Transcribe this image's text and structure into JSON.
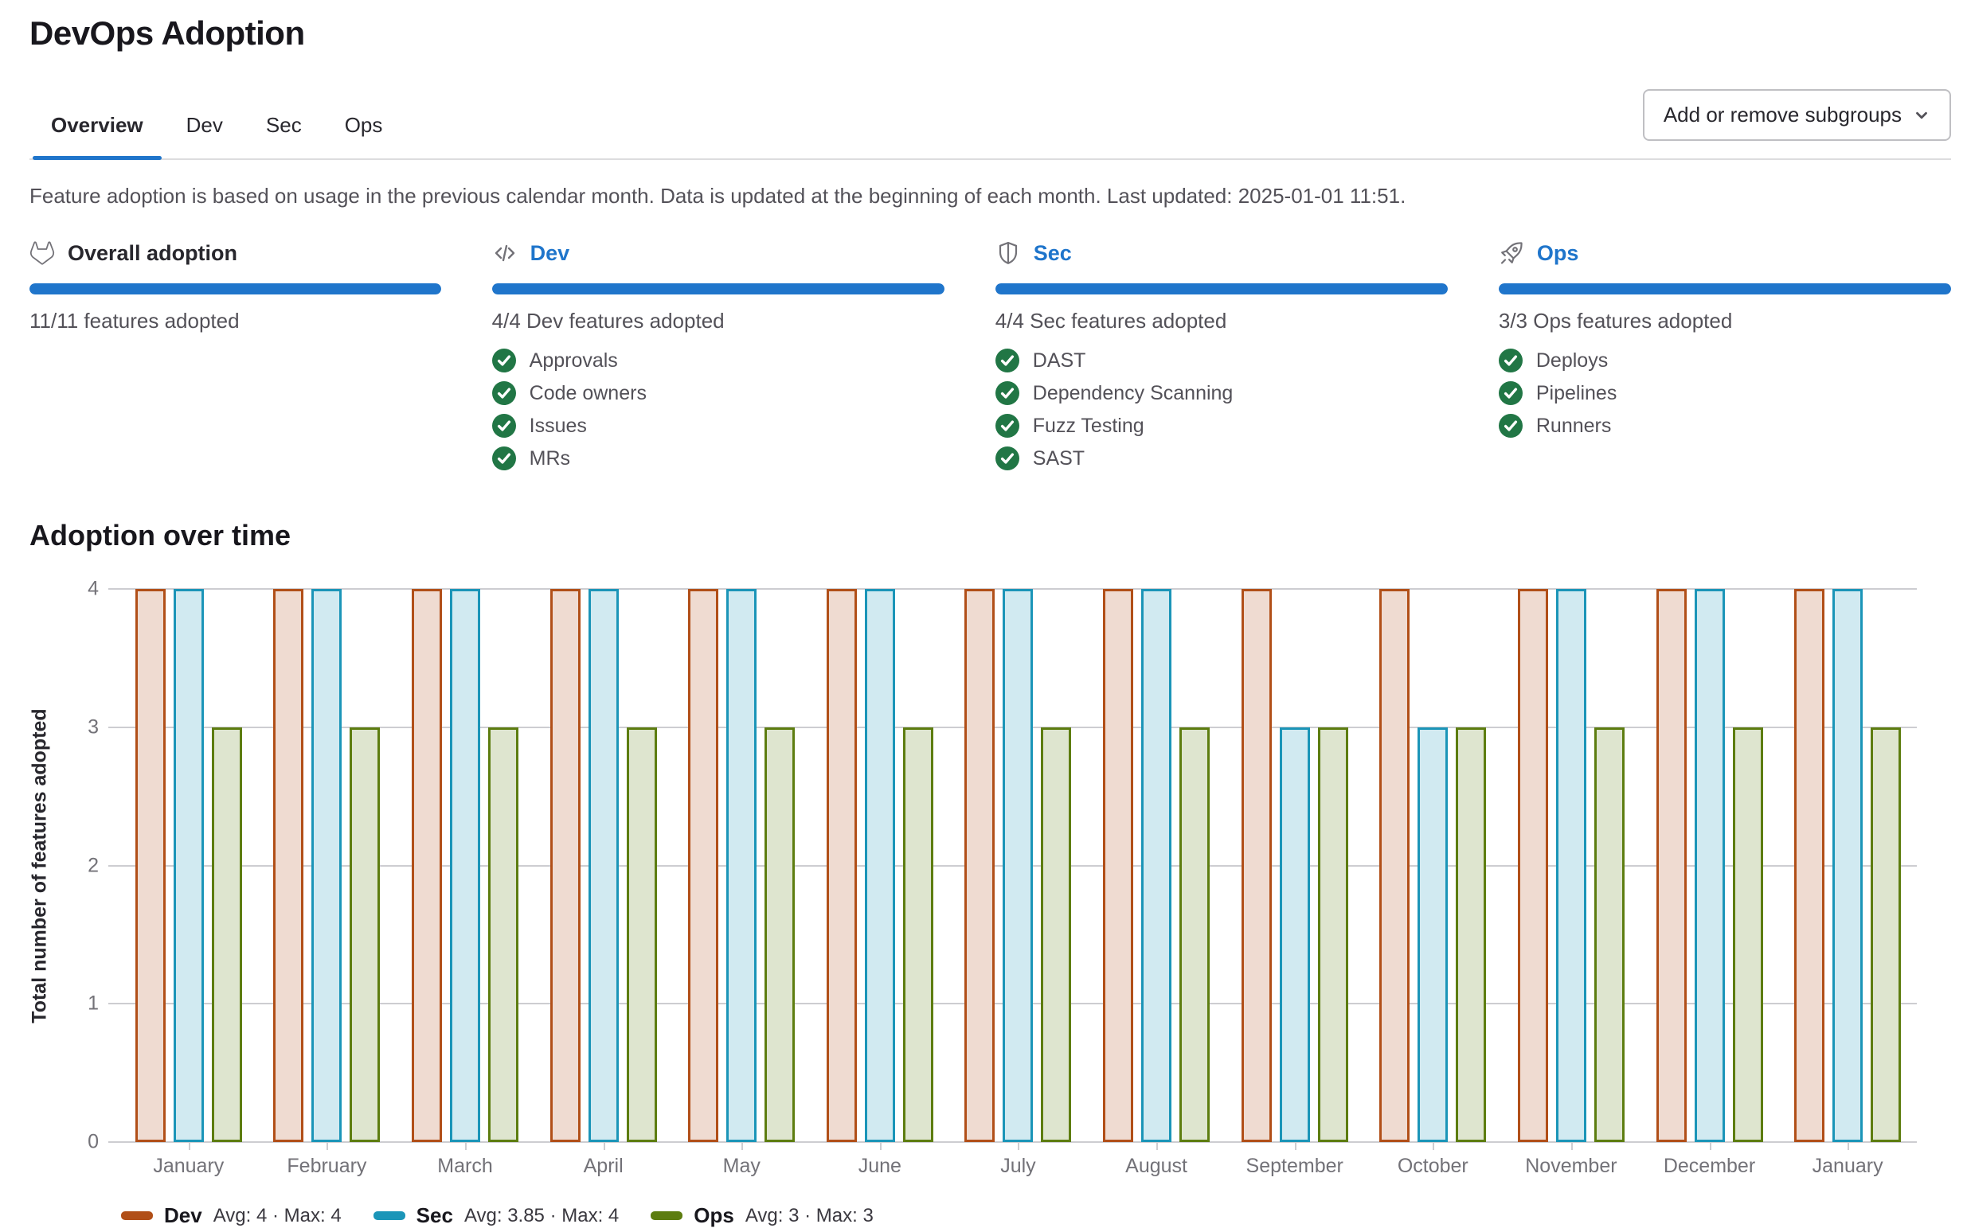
{
  "page_title": "DevOps Adoption",
  "tabs": [
    {
      "label": "Overview",
      "active": true
    },
    {
      "label": "Dev",
      "active": false
    },
    {
      "label": "Sec",
      "active": false
    },
    {
      "label": "Ops",
      "active": false
    }
  ],
  "subgroups_button": {
    "label": "Add or remove subgroups",
    "icon": "chevron-down-icon"
  },
  "note": "Feature adoption is based on usage in the previous calendar month. Data is updated at the beginning of each month. Last updated: 2025-01-01 11:51.",
  "colors": {
    "accent_blue": "#1f75cb",
    "progress_blue": "#1f75cb",
    "check_green": "#217645",
    "icon_gray": "#737278"
  },
  "cards": [
    {
      "icon": "tanuki-icon",
      "title": "Overall adoption",
      "is_link": false,
      "progress_percent": 100,
      "summary": "11/11 features adopted",
      "features": []
    },
    {
      "icon": "code-icon",
      "title": "Dev",
      "is_link": true,
      "progress_percent": 100,
      "summary": "4/4 Dev features adopted",
      "features": [
        "Approvals",
        "Code owners",
        "Issues",
        "MRs"
      ]
    },
    {
      "icon": "shield-icon",
      "title": "Sec",
      "is_link": true,
      "progress_percent": 100,
      "summary": "4/4 Sec features adopted",
      "features": [
        "DAST",
        "Dependency Scanning",
        "Fuzz Testing",
        "SAST"
      ]
    },
    {
      "icon": "rocket-icon",
      "title": "Ops",
      "is_link": true,
      "progress_percent": 100,
      "summary": "3/3 Ops features adopted",
      "features": [
        "Deploys",
        "Pipelines",
        "Runners"
      ]
    }
  ],
  "section_title": "Adoption over time",
  "chart_data": {
    "type": "bar",
    "title": "Adoption over time",
    "xlabel": "",
    "ylabel": "Total number of features adopted",
    "ylim": [
      0,
      4
    ],
    "yticks": [
      0,
      1,
      2,
      3,
      4
    ],
    "grid": true,
    "legend_position": "bottom-left",
    "categories": [
      "January",
      "February",
      "March",
      "April",
      "May",
      "June",
      "July",
      "August",
      "September",
      "October",
      "November",
      "December",
      "January"
    ],
    "series": [
      {
        "name": "Dev",
        "color": "#b14f18",
        "fill": "#efdbd1",
        "stats": "Avg: 4 · Max: 4",
        "values": [
          4,
          4,
          4,
          4,
          4,
          4,
          4,
          4,
          4,
          4,
          4,
          4,
          4
        ]
      },
      {
        "name": "Sec",
        "color": "#1b95b8",
        "fill": "#d1eaf1",
        "stats": "Avg: 3.85 · Max: 4",
        "values": [
          4,
          4,
          4,
          4,
          4,
          4,
          4,
          4,
          3,
          3,
          4,
          4,
          4
        ]
      },
      {
        "name": "Ops",
        "color": "#5d7d10",
        "fill": "#dee5cf",
        "stats": "Avg: 3 · Max: 3",
        "values": [
          3,
          3,
          3,
          3,
          3,
          3,
          3,
          3,
          3,
          3,
          3,
          3,
          3
        ]
      }
    ]
  }
}
